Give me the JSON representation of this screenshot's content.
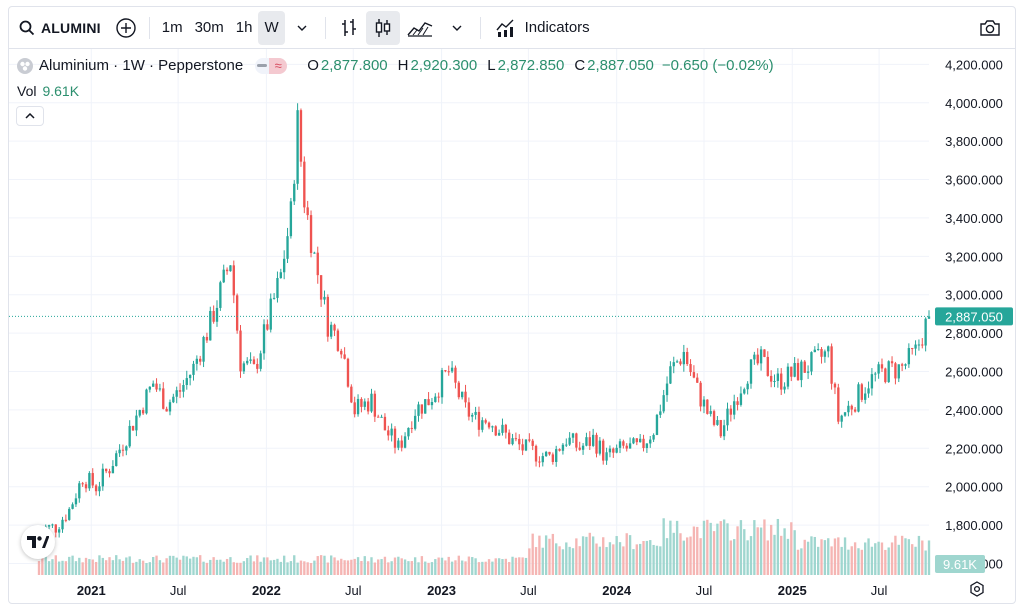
{
  "toolbar": {
    "symbol": "ALUMINI",
    "intervals": [
      "1m",
      "30m",
      "1h",
      "W"
    ],
    "active_interval": "W",
    "indicators_label": "Indicators"
  },
  "legend": {
    "title": "Aluminium · 1W · Pepperstone",
    "open_label": "O",
    "open": "2,877.800",
    "high_label": "H",
    "high": "2,920.300",
    "low_label": "L",
    "low": "2,872.850",
    "close_label": "C",
    "close": "2,887.050",
    "change": "−0.650 (−0.02%)",
    "vol_label": "Vol",
    "vol_value": "9.61K"
  },
  "colors": {
    "up": "#26a69a",
    "down": "#ef5350",
    "vol_up": "#9fd6cf",
    "vol_down": "#f5b5b3",
    "price_line": "#26a69a"
  },
  "chart_data": {
    "type": "candlestick",
    "title": "Aluminium · 1W · Pepperstone",
    "interval": "1W",
    "last_price": 2887.05,
    "last_price_label": "2,887.050",
    "last_volume_label": "9.61K",
    "ylim": [
      1540,
      4280
    ],
    "y_ticks": [
      1600,
      1800,
      2000,
      2200,
      2400,
      2600,
      2800,
      3000,
      3200,
      3400,
      3600,
      3800,
      4000,
      4200
    ],
    "y_tick_labels": [
      "1,600.000",
      "1,800.000",
      "2,000.000",
      "2,200.000",
      "2,400.000",
      "2,600.000",
      "2,800.000",
      "3,000.000",
      "3,200.000",
      "3,400.000",
      "3,600.000",
      "3,800.000",
      "4,000.000",
      "4,200.000"
    ],
    "x_range": [
      "2020-09-14",
      "2025-10-13"
    ],
    "x_ticks": [
      {
        "date": "2021-01-01",
        "label": "2021",
        "major": true
      },
      {
        "date": "2021-07-01",
        "label": "Jul",
        "major": false
      },
      {
        "date": "2022-01-01",
        "label": "2022",
        "major": true
      },
      {
        "date": "2022-07-01",
        "label": "Jul",
        "major": false
      },
      {
        "date": "2023-01-01",
        "label": "2023",
        "major": true
      },
      {
        "date": "2023-07-01",
        "label": "Jul",
        "major": false
      },
      {
        "date": "2024-01-01",
        "label": "2024",
        "major": true
      },
      {
        "date": "2024-07-01",
        "label": "Jul",
        "major": false
      },
      {
        "date": "2025-01-01",
        "label": "2025",
        "major": true
      },
      {
        "date": "2025-07-01",
        "label": "Jul",
        "major": false
      }
    ],
    "price_path": [
      {
        "date": "2020-09-14",
        "close": 1780
      },
      {
        "date": "2020-10-19",
        "close": 1790
      },
      {
        "date": "2020-11-16",
        "close": 1880
      },
      {
        "date": "2020-12-14",
        "close": 2050
      },
      {
        "date": "2021-01-11",
        "close": 2000
      },
      {
        "date": "2021-02-08",
        "close": 2100
      },
      {
        "date": "2021-03-08",
        "close": 2230
      },
      {
        "date": "2021-04-12",
        "close": 2400
      },
      {
        "date": "2021-05-10",
        "close": 2540
      },
      {
        "date": "2021-06-07",
        "close": 2430
      },
      {
        "date": "2021-07-05",
        "close": 2500
      },
      {
        "date": "2021-08-02",
        "close": 2620
      },
      {
        "date": "2021-09-06",
        "close": 2850
      },
      {
        "date": "2021-10-18",
        "close": 3180
      },
      {
        "date": "2021-11-08",
        "close": 2650
      },
      {
        "date": "2021-12-06",
        "close": 2600
      },
      {
        "date": "2022-01-03",
        "close": 2850
      },
      {
        "date": "2022-01-31",
        "close": 3100
      },
      {
        "date": "2022-02-21",
        "close": 3420
      },
      {
        "date": "2022-03-07",
        "close": 3900
      },
      {
        "date": "2022-03-21",
        "close": 3500
      },
      {
        "date": "2022-04-11",
        "close": 3200
      },
      {
        "date": "2022-05-09",
        "close": 2850
      },
      {
        "date": "2022-06-06",
        "close": 2750
      },
      {
        "date": "2022-07-04",
        "close": 2400
      },
      {
        "date": "2022-08-08",
        "close": 2450
      },
      {
        "date": "2022-09-05",
        "close": 2300
      },
      {
        "date": "2022-10-03",
        "close": 2200
      },
      {
        "date": "2022-11-07",
        "close": 2400
      },
      {
        "date": "2022-12-05",
        "close": 2450
      },
      {
        "date": "2023-01-16",
        "close": 2600
      },
      {
        "date": "2023-02-20",
        "close": 2400
      },
      {
        "date": "2023-03-13",
        "close": 2350
      },
      {
        "date": "2023-04-10",
        "close": 2350
      },
      {
        "date": "2023-05-22",
        "close": 2250
      },
      {
        "date": "2023-06-19",
        "close": 2200
      },
      {
        "date": "2023-08-14",
        "close": 2150
      },
      {
        "date": "2023-09-18",
        "close": 2250
      },
      {
        "date": "2023-10-16",
        "close": 2200
      },
      {
        "date": "2023-11-13",
        "close": 2250
      },
      {
        "date": "2023-12-11",
        "close": 2150
      },
      {
        "date": "2024-01-15",
        "close": 2200
      },
      {
        "date": "2024-02-19",
        "close": 2200
      },
      {
        "date": "2024-03-18",
        "close": 2300
      },
      {
        "date": "2024-04-22",
        "close": 2600
      },
      {
        "date": "2024-05-20",
        "close": 2700
      },
      {
        "date": "2024-06-17",
        "close": 2500
      },
      {
        "date": "2024-07-15",
        "close": 2350
      },
      {
        "date": "2024-08-05",
        "close": 2280
      },
      {
        "date": "2024-09-02",
        "close": 2450
      },
      {
        "date": "2024-09-30",
        "close": 2600
      },
      {
        "date": "2024-10-28",
        "close": 2650
      },
      {
        "date": "2024-12-02",
        "close": 2550
      },
      {
        "date": "2025-01-13",
        "close": 2600
      },
      {
        "date": "2025-02-17",
        "close": 2650
      },
      {
        "date": "2025-03-17",
        "close": 2700
      },
      {
        "date": "2025-04-07",
        "close": 2350
      },
      {
        "date": "2025-05-12",
        "close": 2450
      },
      {
        "date": "2025-06-09",
        "close": 2550
      },
      {
        "date": "2025-07-14",
        "close": 2600
      },
      {
        "date": "2025-08-18",
        "close": 2620
      },
      {
        "date": "2025-09-15",
        "close": 2700
      },
      {
        "date": "2025-10-13",
        "close": 2887
      }
    ],
    "volume_regimes": [
      {
        "from": "2020-09-14",
        "to": "2023-06-25",
        "level": 0.42
      },
      {
        "from": "2023-07-03",
        "to": "2024-03-31",
        "level": 0.9
      },
      {
        "from": "2024-04-01",
        "to": "2024-12-31",
        "level": 1.2
      },
      {
        "from": "2025-01-01",
        "to": "2025-10-13",
        "level": 0.85
      }
    ]
  }
}
